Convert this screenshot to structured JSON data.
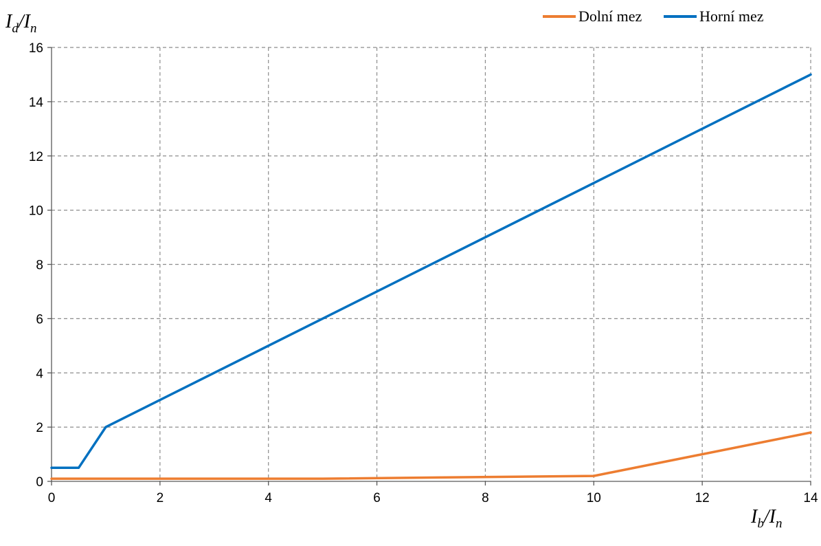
{
  "chart_data": {
    "type": "line",
    "title": "",
    "ylabel": {
      "main": "I",
      "sub1": "d",
      "sep": "/I",
      "sub2": "n"
    },
    "xlabel": {
      "main": "I",
      "sub1": "b",
      "sep": "/I",
      "sub2": "n"
    },
    "xlim": [
      0,
      14
    ],
    "ylim": [
      0,
      16
    ],
    "xticks": [
      0,
      2,
      4,
      6,
      8,
      10,
      12,
      14
    ],
    "yticks": [
      0,
      2,
      4,
      6,
      8,
      10,
      12,
      14,
      16
    ],
    "grid": true,
    "legend_position": "top-right",
    "series": [
      {
        "name": "Dolní mez",
        "color": "#ED7D31",
        "x": [
          0,
          5,
          10,
          14
        ],
        "y": [
          0.1,
          0.1,
          0.2,
          1.8
        ]
      },
      {
        "name": "Horní mez",
        "color": "#0070C0",
        "x": [
          0,
          0.5,
          1,
          14
        ],
        "y": [
          0.5,
          0.5,
          2,
          15
        ]
      }
    ]
  }
}
